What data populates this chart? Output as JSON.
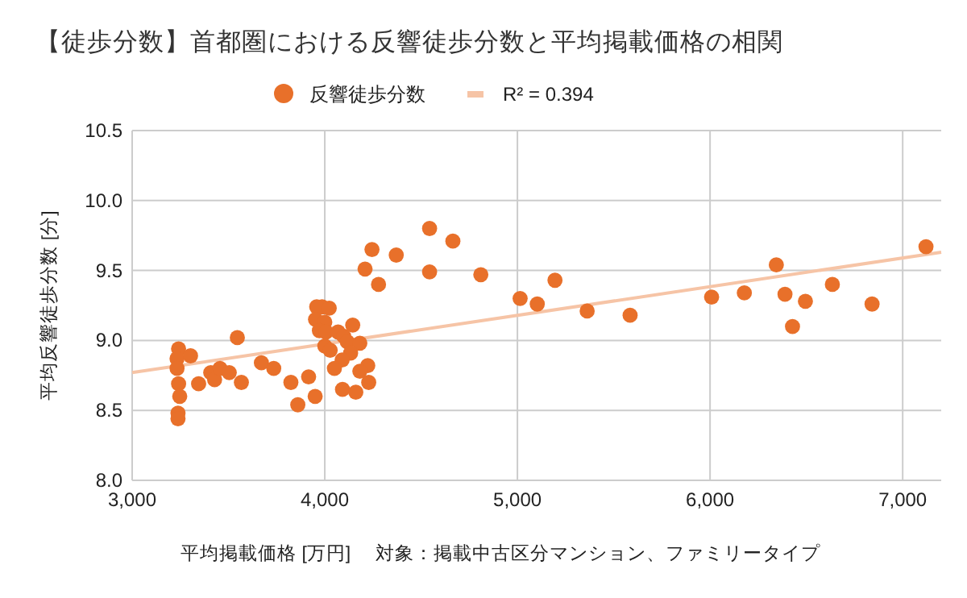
{
  "chart_data": {
    "type": "scatter",
    "title": "【徒歩分数】首都圏における反響徒歩分数と平均掲載価格の相関",
    "xlabel": "平均掲載価格 [万円]",
    "ylabel": "平均反響徒歩分数 [分]",
    "annotations": [
      "対象：掲載中古区分マンション、ファミリータイプ"
    ],
    "xlim": [
      3000,
      7200
    ],
    "ylim": [
      8,
      10.5
    ],
    "xticks": [
      {
        "value": 3000,
        "label": "3,000"
      },
      {
        "value": 4000,
        "label": "4,000"
      },
      {
        "value": 5000,
        "label": "5,000"
      },
      {
        "value": 6000,
        "label": "6,000"
      },
      {
        "value": 7000,
        "label": "7,000"
      }
    ],
    "yticks": [
      {
        "value": 8,
        "label": "8.0"
      },
      {
        "value": 8.5,
        "label": "8.5"
      },
      {
        "value": 9,
        "label": "9.0"
      },
      {
        "value": 9.5,
        "label": "9.5"
      },
      {
        "value": 10,
        "label": "10.0"
      },
      {
        "value": 10.5,
        "label": "10.5"
      }
    ],
    "grid": true,
    "legend": "top",
    "series": [
      {
        "name": "反響徒歩分数",
        "marker": "circle",
        "color": "#e8702a",
        "x": [
          3241,
          3233,
          3303,
          3233,
          3241,
          3247,
          3238,
          3238,
          3345,
          3408,
          3428,
          3456,
          3504,
          3546,
          3567,
          3671,
          3735,
          3824,
          3916,
          3860,
          3950,
          3986,
          3958,
          4023,
          3952,
          4000,
          3972,
          4006,
          4000,
          4028,
          4069,
          4098,
          4145,
          4117,
          4182,
          4134,
          4090,
          4050,
          4223,
          4182,
          4228,
          4092,
          4161,
          4209,
          4245,
          4279,
          4371,
          4544,
          4544,
          4665,
          4810,
          5014,
          5103,
          5195,
          5362,
          5585,
          6008,
          6178,
          6344,
          6389,
          6428,
          6495,
          6635,
          6841,
          7121
        ],
        "values": [
          8.94,
          8.87,
          8.89,
          8.8,
          8.69,
          8.6,
          8.48,
          8.44,
          8.69,
          8.77,
          8.72,
          8.8,
          8.77,
          9.02,
          8.7,
          8.84,
          8.8,
          8.7,
          8.74,
          8.54,
          8.6,
          9.24,
          9.24,
          9.23,
          9.15,
          9.13,
          9.07,
          9.06,
          8.96,
          8.93,
          9.06,
          9.03,
          9.11,
          8.99,
          8.98,
          8.91,
          8.86,
          8.8,
          8.82,
          8.78,
          8.7,
          8.65,
          8.63,
          9.51,
          9.65,
          9.4,
          9.61,
          9.8,
          9.49,
          9.71,
          9.47,
          9.3,
          9.26,
          9.43,
          9.21,
          9.18,
          9.31,
          9.34,
          9.54,
          9.33,
          9.1,
          9.28,
          9.4,
          9.26,
          9.67
        ]
      },
      {
        "name": "R² = 0.394",
        "type": "line",
        "color": "#f6c4a6",
        "x": [
          3000,
          7200
        ],
        "values": [
          8.77,
          9.63
        ]
      }
    ]
  }
}
